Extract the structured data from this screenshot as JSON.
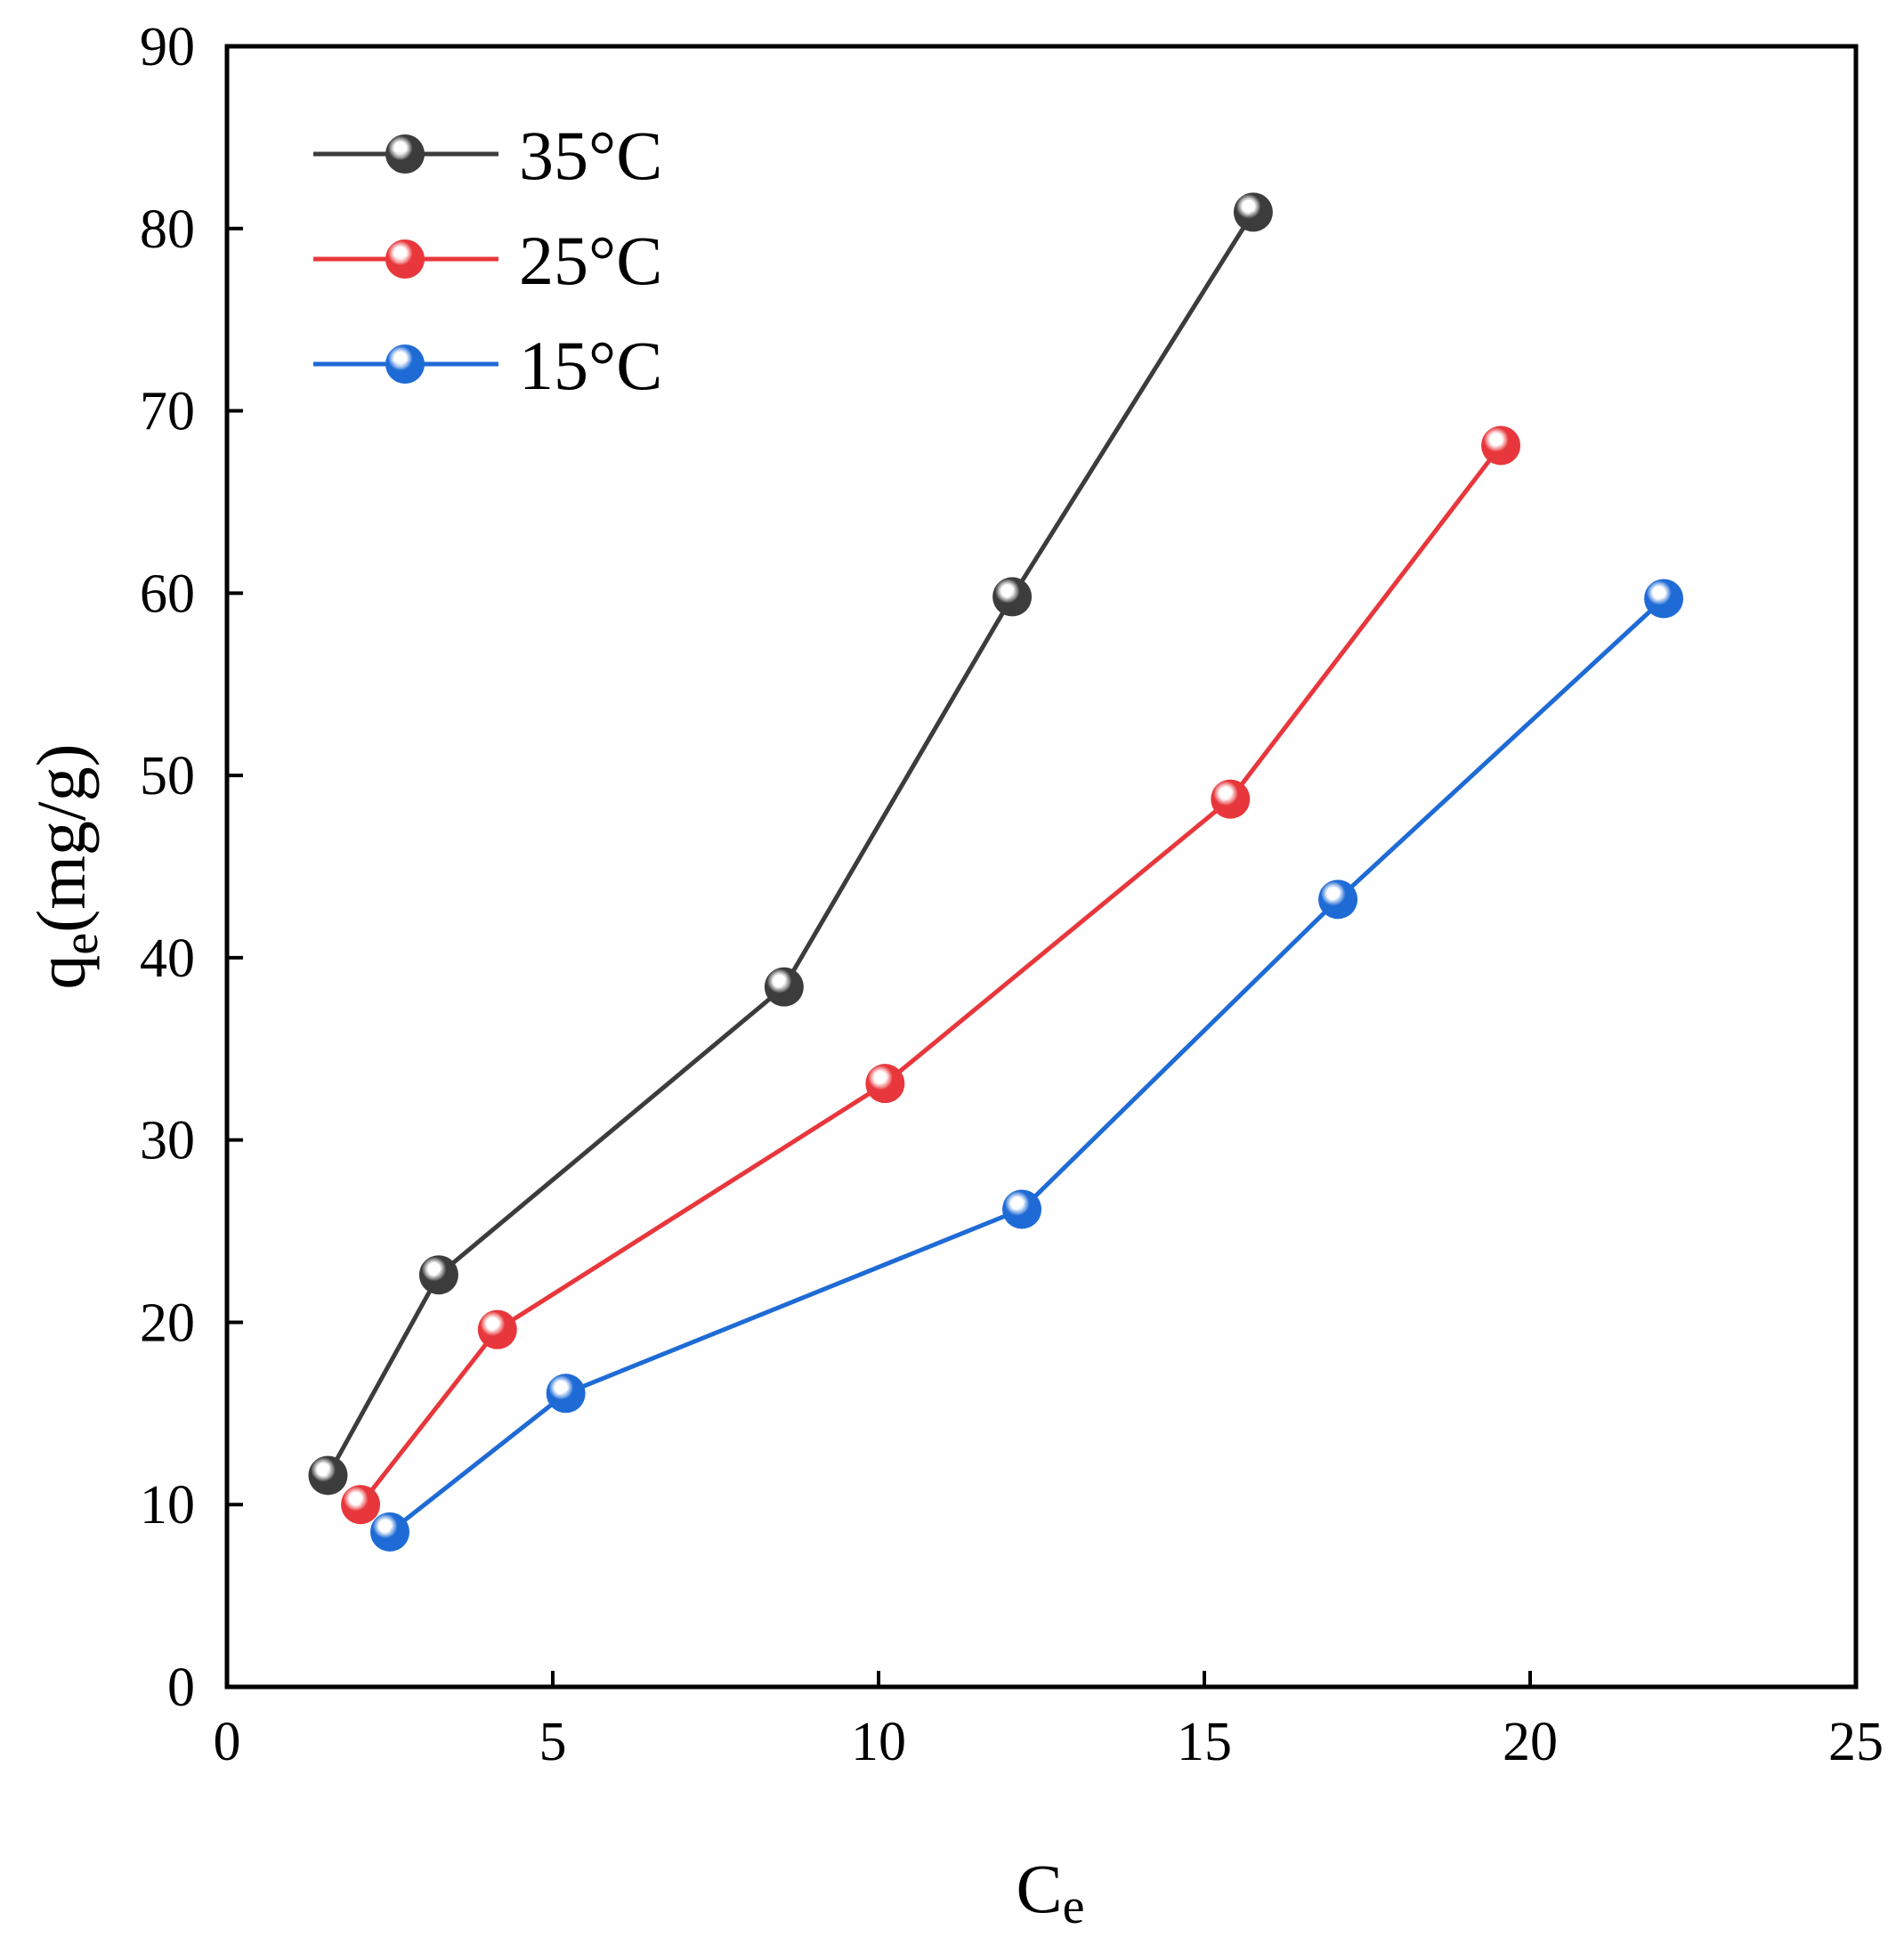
{
  "chart_data": {
    "type": "line",
    "title": "",
    "xlabel": {
      "main": "C",
      "sub": "e"
    },
    "ylabel": {
      "main": "q",
      "sub": "e",
      "rest": "(mg/g)"
    },
    "xlim": [
      0,
      25
    ],
    "ylim": [
      0,
      90
    ],
    "xticks": [
      0,
      5,
      10,
      15,
      20,
      25
    ],
    "yticks": [
      0,
      10,
      20,
      30,
      40,
      50,
      60,
      70,
      80,
      90
    ],
    "grid": false,
    "legend_position": "top-left",
    "series": [
      {
        "name": "35°C",
        "color": "#3c3c3c",
        "x": [
          1.55,
          3.25,
          8.55,
          12.05,
          15.75
        ],
        "y": [
          11.6,
          22.6,
          38.4,
          59.8,
          80.9
        ]
      },
      {
        "name": "25°C",
        "color": "#e8373c",
        "x": [
          2.05,
          4.15,
          10.1,
          15.4,
          19.55
        ],
        "y": [
          10.0,
          19.6,
          33.1,
          48.7,
          68.1
        ]
      },
      {
        "name": "15°C",
        "color": "#1f6bd6",
        "x": [
          2.5,
          5.2,
          12.2,
          17.05,
          22.05
        ],
        "y": [
          8.5,
          16.1,
          26.2,
          43.2,
          59.7
        ]
      }
    ]
  }
}
